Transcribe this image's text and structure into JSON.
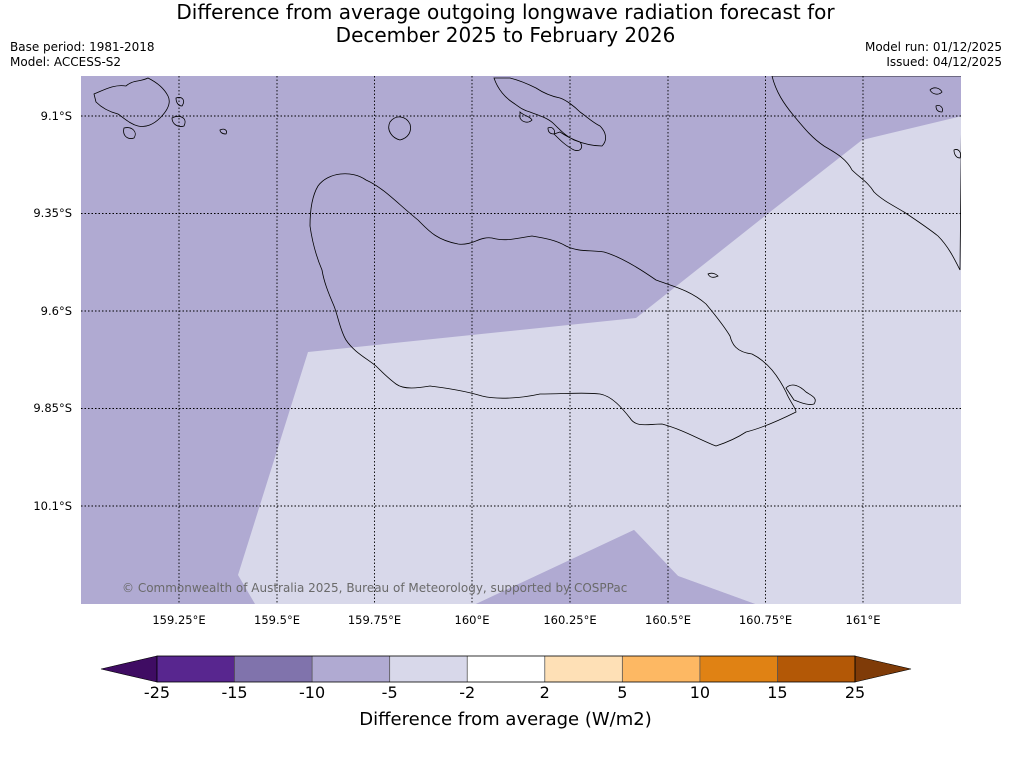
{
  "title": {
    "line1": "Difference from average outgoing longwave radiation forecast for",
    "line2": "December 2025 to February 2026"
  },
  "meta": {
    "base_period": "Base period: 1981-2018",
    "model": "Model: ACCESS-S2",
    "model_run": "Model run: 01/12/2025",
    "issued": "Issued: 04/12/2025"
  },
  "map": {
    "lat_labels": [
      "9.1°S",
      "9.35°S",
      "9.6°S",
      "9.85°S",
      "10.1°S"
    ],
    "lon_labels": [
      "159.25°E",
      "159.5°E",
      "159.75°E",
      "160°E",
      "160.25°E",
      "160.5°E",
      "160.75°E",
      "161°E"
    ],
    "copyright": "© Commonwealth of Australia 2025, Bureau of Meteorology, supported by COSPPac",
    "colors": {
      "band_minus10_minus5": "#b0aad2",
      "band_minus5_minus2": "#d8d8ea",
      "coastline": "#000000",
      "gridline": "#000000"
    }
  },
  "colorbar": {
    "title": "Difference from average (W/m2)",
    "tick_labels": [
      "-25",
      "-15",
      "-10",
      "-5",
      "-2",
      "2",
      "5",
      "10",
      "15",
      "25"
    ],
    "colors": [
      "#3f0c63",
      "#58268f",
      "#8073ac",
      "#b0aad2",
      "#d8d8ea",
      "#ffffff",
      "#fee0b6",
      "#fdb863",
      "#e08214",
      "#b35806",
      "#7f3b08"
    ]
  }
}
